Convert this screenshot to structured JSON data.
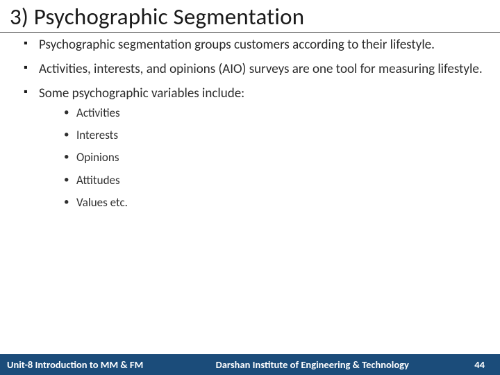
{
  "title": "3)  Psychographic Segmentation",
  "bullets": [
    {
      "text": "Psychographic segmentation groups customers according to their lifestyle.",
      "justify": false
    },
    {
      "text": "Activities, interests, and opinions (AIO) surveys are one tool for measuring lifestyle.",
      "justify": true
    },
    {
      "text": "Some psychographic variables include:",
      "justify": false
    }
  ],
  "subbullets": [
    "Activities",
    "Interests",
    "Opinions",
    "Attitudes",
    "Values etc."
  ],
  "footer": {
    "unit": "Unit-8 Introduction to MM & FM",
    "institution": "Darshan Institute of Engineering & Technology",
    "page": "44"
  },
  "colors": {
    "footer_bg": "#1b4c7a",
    "footer_text": "#ffffff",
    "body_text": "#242424",
    "rule": "#606060"
  },
  "typography": {
    "title_fontsize": 33,
    "bullet_fontsize": 19,
    "subbullet_fontsize": 17,
    "footer_fontsize": 14.5
  }
}
